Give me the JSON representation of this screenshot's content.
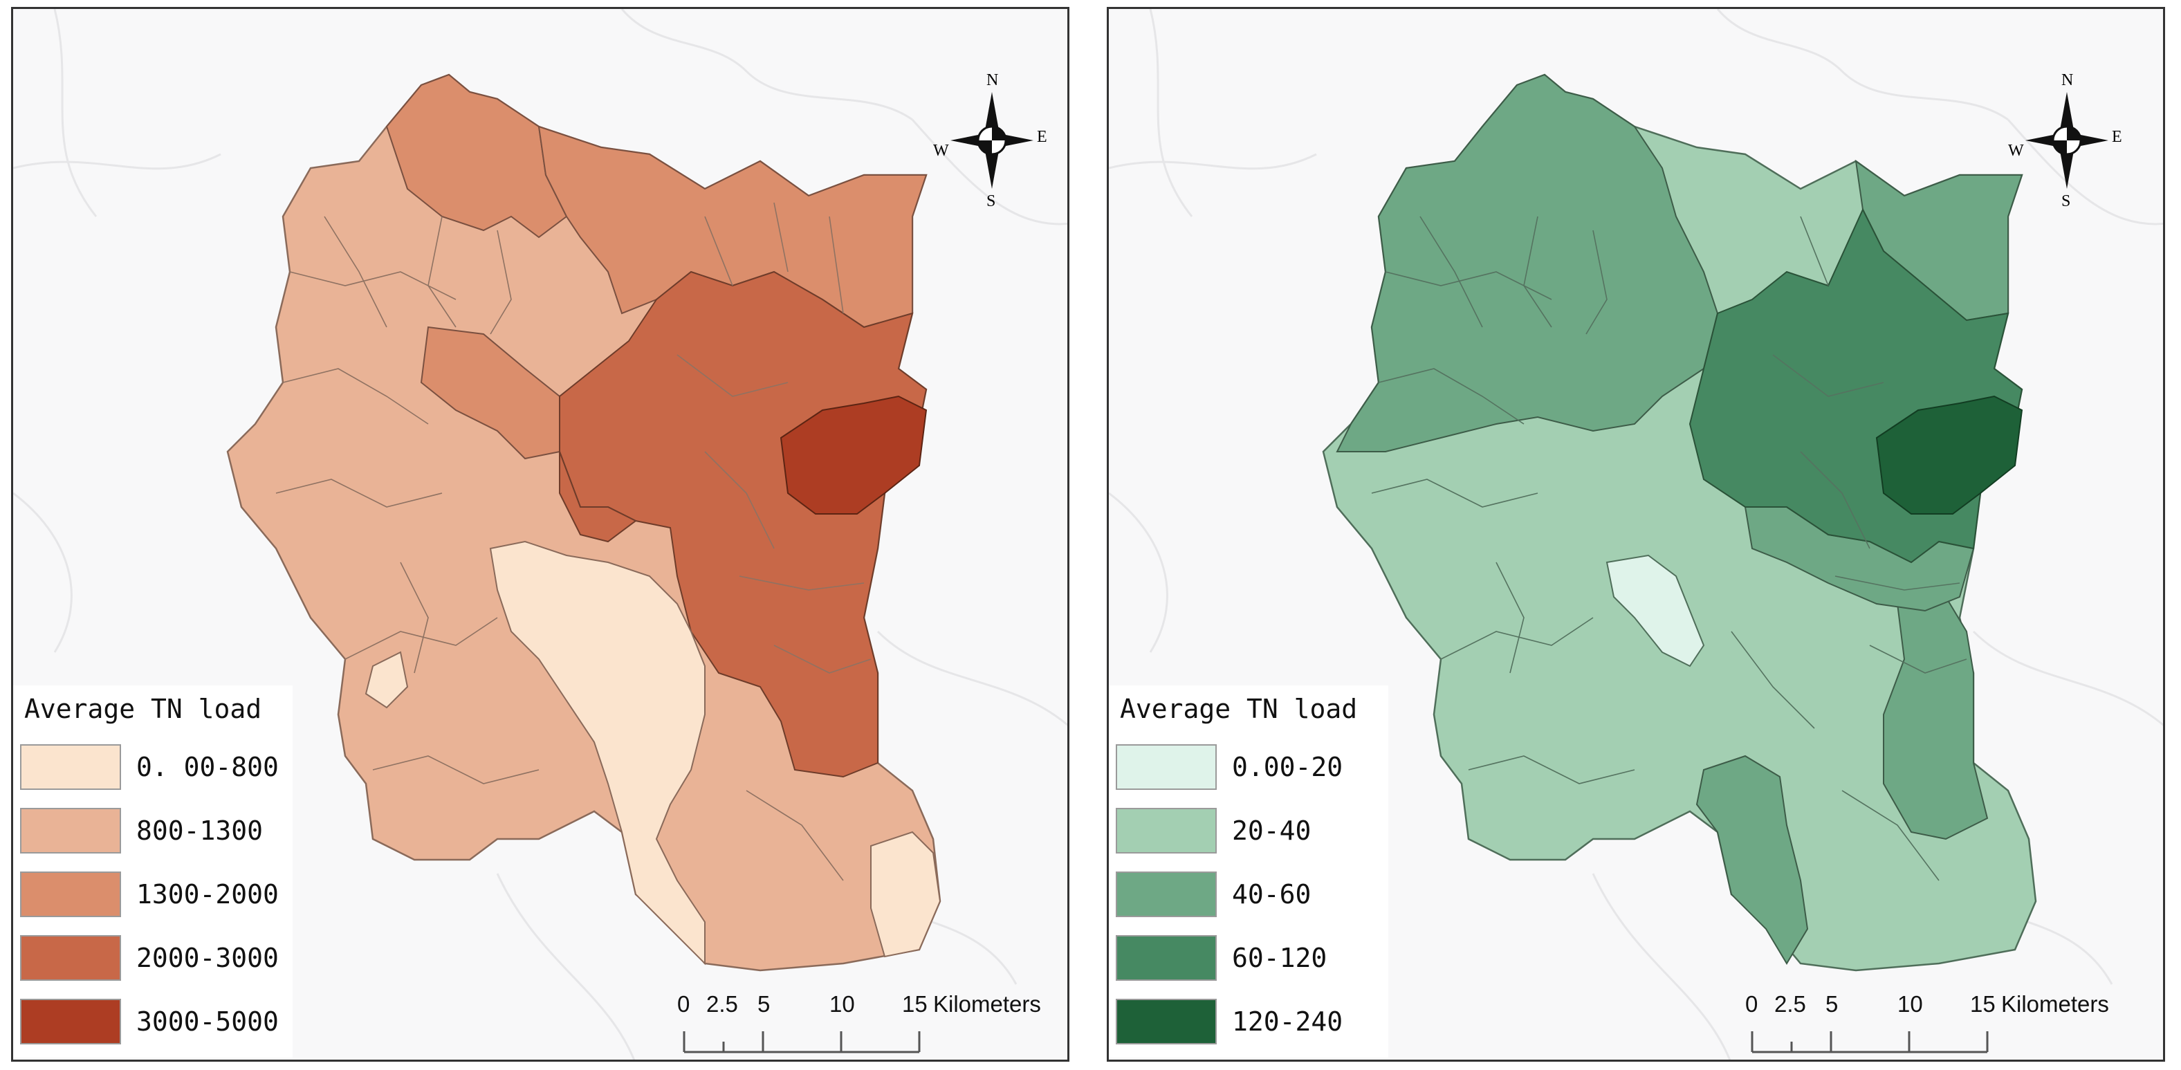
{
  "maps": [
    {
      "legend_title": "Average TN load",
      "classes": [
        {
          "label": "0. 00-800",
          "color": "#fbe4ce"
        },
        {
          "label": "800-1300",
          "color": "#e9b396"
        },
        {
          "label": "1300-2000",
          "color": "#db8e6c"
        },
        {
          "label": "2000-3000",
          "color": "#c86848"
        },
        {
          "label": "3000-5000",
          "color": "#ad3d23"
        }
      ],
      "compass": {
        "n": "N",
        "s": "S",
        "e": "E",
        "w": "W",
        "icon": "compass-rose-icon"
      },
      "scale": {
        "ticks": [
          "0",
          "2.5",
          "5",
          "10",
          "15"
        ],
        "unit": "Kilometers"
      }
    },
    {
      "legend_title": "Average TN load",
      "classes": [
        {
          "label": "0.00-20",
          "color": "#dff3ea"
        },
        {
          "label": "20-40",
          "color": "#a3cfb2"
        },
        {
          "label": "40-60",
          "color": "#6ea885"
        },
        {
          "label": "60-120",
          "color": "#468962"
        },
        {
          "label": "120-240",
          "color": "#1e6138"
        }
      ],
      "compass": {
        "n": "N",
        "s": "S",
        "e": "E",
        "w": "W",
        "icon": "compass-rose-icon"
      },
      "scale": {
        "ticks": [
          "0",
          "2.5",
          "5",
          "10",
          "15"
        ],
        "unit": "Kilometers"
      }
    }
  ]
}
